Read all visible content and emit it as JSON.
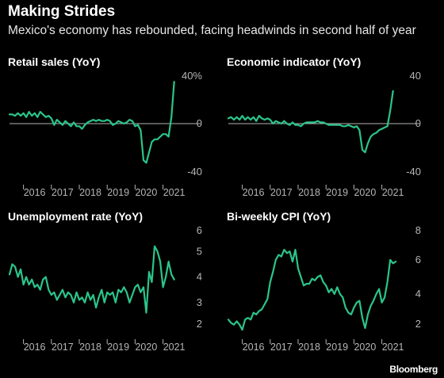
{
  "title": "Making Strides",
  "subtitle": "Mexico's economy has rebounded, facing headwinds in second half of year",
  "source": "Bloomberg",
  "colors": {
    "background": "#000000",
    "line": "#2bc58a",
    "text": "#ffffff",
    "axis": "#b5b5b5"
  },
  "chart_data": [
    {
      "type": "line",
      "title": "Retail sales (YoY)",
      "xlim": [
        2015.5,
        2021.75
      ],
      "x_ticks": [
        "2016",
        "2017",
        "2018",
        "2019",
        "2020",
        "2021"
      ],
      "ylim": [
        -40,
        40
      ],
      "y_ticks": [
        {
          "value": 40,
          "label": "40%"
        },
        {
          "value": 0,
          "label": "0"
        },
        {
          "value": -40,
          "label": "-40"
        }
      ],
      "zero_line": true,
      "series": [
        {
          "x": [
            2015.5,
            2015.6,
            2015.7,
            2015.8,
            2015.9,
            2016.0,
            2016.1,
            2016.2,
            2016.3,
            2016.4,
            2016.5,
            2016.6,
            2016.7,
            2016.8,
            2016.9,
            2017.0,
            2017.1,
            2017.2,
            2017.3,
            2017.4,
            2017.5,
            2017.6,
            2017.7,
            2017.8,
            2017.9,
            2018.0,
            2018.1,
            2018.2,
            2018.3,
            2018.4,
            2018.5,
            2018.6,
            2018.7,
            2018.8,
            2018.9,
            2019.0,
            2019.1,
            2019.2,
            2019.3,
            2019.4,
            2019.5,
            2019.6,
            2019.7,
            2019.8,
            2019.9,
            2020.0,
            2020.1,
            2020.2,
            2020.3,
            2020.4,
            2020.5,
            2020.6,
            2020.7,
            2020.8,
            2020.9,
            2021.0,
            2021.1,
            2021.2,
            2021.3,
            2021.4
          ],
          "values": [
            7,
            7,
            6,
            8,
            6,
            8,
            5,
            9,
            6,
            8,
            5,
            9,
            7,
            5,
            6,
            4,
            -1,
            3,
            1,
            -1,
            2,
            0,
            -2,
            1,
            -2,
            -2,
            -4,
            -1,
            1,
            2,
            3,
            2,
            3,
            2,
            2,
            3,
            2,
            -1,
            0,
            2,
            1,
            0,
            1,
            3,
            2,
            -2,
            -1,
            -5,
            -28,
            -30,
            -22,
            -14,
            -12,
            -12,
            -10,
            -8,
            -8,
            -10,
            5,
            32
          ]
        }
      ]
    },
    {
      "type": "line",
      "title": "Economic indicator (YoY)",
      "xlim": [
        2015.5,
        2021.75
      ],
      "x_ticks": [
        "2016",
        "2017",
        "2018",
        "2019",
        "2020",
        "2021"
      ],
      "ylim": [
        -40,
        40
      ],
      "y_ticks": [
        {
          "value": 40,
          "label": "40"
        },
        {
          "value": 0,
          "label": "0"
        },
        {
          "value": -40,
          "label": "-40"
        }
      ],
      "zero_line": true,
      "series": [
        {
          "x": [
            2015.5,
            2015.6,
            2015.7,
            2015.8,
            2015.9,
            2016.0,
            2016.1,
            2016.2,
            2016.3,
            2016.4,
            2016.5,
            2016.6,
            2016.7,
            2016.8,
            2016.9,
            2017.0,
            2017.1,
            2017.2,
            2017.3,
            2017.4,
            2017.5,
            2017.6,
            2017.7,
            2017.8,
            2017.9,
            2018.0,
            2018.1,
            2018.2,
            2018.3,
            2018.4,
            2018.5,
            2018.6,
            2018.7,
            2018.8,
            2018.9,
            2019.0,
            2019.1,
            2019.2,
            2019.3,
            2019.4,
            2019.5,
            2019.6,
            2019.7,
            2019.8,
            2019.9,
            2020.0,
            2020.1,
            2020.2,
            2020.3,
            2020.4,
            2020.5,
            2020.6,
            2020.7,
            2020.8,
            2020.9,
            2021.0,
            2021.1,
            2021.2,
            2021.3,
            2021.4
          ],
          "values": [
            4,
            5,
            3,
            5,
            3,
            6,
            3,
            5,
            3,
            5,
            2,
            6,
            4,
            3,
            4,
            3,
            0,
            2,
            1,
            0,
            2,
            0,
            -1,
            1,
            -1,
            -1,
            -2,
            0,
            1,
            1,
            1,
            1,
            2,
            1,
            1,
            0,
            -1,
            -1,
            -1,
            -1,
            -1,
            -2,
            -2,
            -1,
            -2,
            -3,
            -2,
            -5,
            -20,
            -22,
            -15,
            -10,
            -8,
            -7,
            -5,
            -4,
            -3,
            -2,
            10,
            25
          ]
        }
      ]
    },
    {
      "type": "line",
      "title": "Unemployment rate (YoY)",
      "xlim": [
        2015.5,
        2021.75
      ],
      "x_ticks": [
        "2016",
        "2017",
        "2018",
        "2019",
        "2020",
        "2021"
      ],
      "ylim": [
        2,
        6
      ],
      "y_ticks": [
        {
          "value": 6,
          "label": "6"
        },
        {
          "value": 5,
          "label": "5"
        },
        {
          "value": 4,
          "label": "4"
        },
        {
          "value": 3,
          "label": "3"
        },
        {
          "value": 2,
          "label": "2"
        }
      ],
      "zero_line": false,
      "series": [
        {
          "x": [
            2015.5,
            2015.6,
            2015.7,
            2015.8,
            2015.9,
            2016.0,
            2016.1,
            2016.2,
            2016.3,
            2016.4,
            2016.5,
            2016.6,
            2016.7,
            2016.8,
            2016.9,
            2017.0,
            2017.1,
            2017.2,
            2017.3,
            2017.4,
            2017.5,
            2017.6,
            2017.7,
            2017.8,
            2017.9,
            2018.0,
            2018.1,
            2018.2,
            2018.3,
            2018.4,
            2018.5,
            2018.6,
            2018.7,
            2018.8,
            2018.9,
            2019.0,
            2019.1,
            2019.2,
            2019.3,
            2019.4,
            2019.5,
            2019.6,
            2019.7,
            2019.8,
            2019.9,
            2020.0,
            2020.1,
            2020.2,
            2020.3,
            2020.4,
            2020.5,
            2020.6,
            2020.7,
            2020.8,
            2020.9,
            2021.0,
            2021.1,
            2021.2,
            2021.3,
            2021.4
          ],
          "values": [
            4.1,
            4.5,
            4.4,
            4.0,
            4.3,
            3.7,
            4.0,
            3.7,
            3.9,
            3.6,
            3.7,
            3.5,
            3.9,
            4.0,
            3.5,
            3.3,
            3.4,
            3.1,
            3.3,
            3.5,
            3.2,
            3.4,
            3.3,
            3.0,
            3.4,
            3.1,
            3.2,
            3.0,
            3.4,
            3.1,
            3.3,
            2.8,
            3.2,
            3.5,
            3.0,
            3.4,
            3.3,
            3.4,
            3.0,
            3.5,
            3.4,
            3.6,
            3.4,
            3.0,
            3.3,
            3.6,
            3.7,
            3.4,
            3.6,
            2.6,
            4.2,
            3.8,
            5.2,
            5.0,
            4.6,
            3.6,
            4.0,
            4.6,
            4.1,
            3.9
          ]
        }
      ]
    },
    {
      "type": "line",
      "title": "Bi-weekly CPI (YoY)",
      "xlim": [
        2015.5,
        2021.75
      ],
      "x_ticks": [
        "2016",
        "2017",
        "2018",
        "2019",
        "2020",
        "2021"
      ],
      "ylim": [
        2,
        8
      ],
      "y_ticks": [
        {
          "value": 8,
          "label": "8"
        },
        {
          "value": 6,
          "label": "6"
        },
        {
          "value": 4,
          "label": "4"
        },
        {
          "value": 2,
          "label": "2"
        }
      ],
      "zero_line": false,
      "series": [
        {
          "x": [
            2015.5,
            2015.6,
            2015.7,
            2015.8,
            2015.9,
            2016.0,
            2016.1,
            2016.2,
            2016.3,
            2016.4,
            2016.5,
            2016.6,
            2016.7,
            2016.8,
            2016.9,
            2017.0,
            2017.1,
            2017.2,
            2017.3,
            2017.4,
            2017.5,
            2017.6,
            2017.7,
            2017.8,
            2017.9,
            2018.0,
            2018.1,
            2018.2,
            2018.3,
            2018.4,
            2018.5,
            2018.6,
            2018.7,
            2018.8,
            2018.9,
            2019.0,
            2019.1,
            2019.2,
            2019.3,
            2019.4,
            2019.5,
            2019.6,
            2019.7,
            2019.8,
            2019.9,
            2020.0,
            2020.1,
            2020.2,
            2020.3,
            2020.4,
            2020.5,
            2020.6,
            2020.7,
            2020.8,
            2020.9,
            2021.0,
            2021.1,
            2021.2,
            2021.3,
            2021.4,
            2021.5
          ],
          "values": [
            2.5,
            2.3,
            2.2,
            2.4,
            2.2,
            1.9,
            2.5,
            2.6,
            2.5,
            2.9,
            2.8,
            3.0,
            3.1,
            3.4,
            3.7,
            4.7,
            5.3,
            6.0,
            6.3,
            6.2,
            6.6,
            6.4,
            6.5,
            5.9,
            6.6,
            5.5,
            5.0,
            4.5,
            4.6,
            4.6,
            4.9,
            4.8,
            5.0,
            5.1,
            4.7,
            4.5,
            4.1,
            4.3,
            4.0,
            4.4,
            4.0,
            3.8,
            3.2,
            2.9,
            2.8,
            3.2,
            3.5,
            3.6,
            2.6,
            2.0,
            2.8,
            3.3,
            3.6,
            4.0,
            4.3,
            3.5,
            3.8,
            4.7,
            6.0,
            5.8,
            5.9
          ]
        }
      ]
    }
  ]
}
